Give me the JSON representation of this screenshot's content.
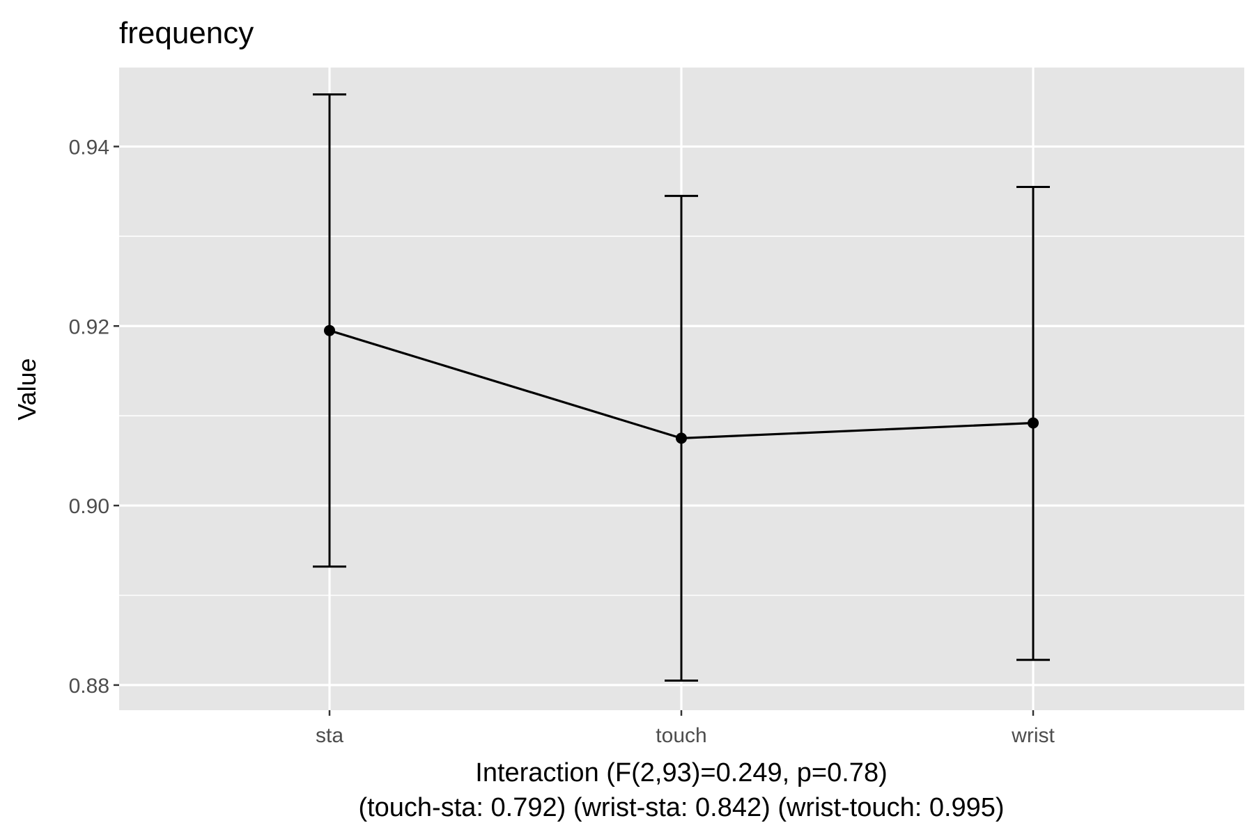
{
  "chart_data": {
    "type": "line",
    "title": "frequency",
    "xlabel_lines": [
      "Interaction (F(2,93)=0.249, p=0.78)",
      "(touch-sta: 0.792) (wrist-sta: 0.842) (wrist-touch: 0.995)"
    ],
    "ylabel": "Value",
    "categories": [
      "sta",
      "touch",
      "wrist"
    ],
    "series": [
      {
        "values": [
          0.9195,
          0.9075,
          0.9092
        ],
        "error_lower": [
          0.8932,
          0.8805,
          0.8828
        ],
        "error_upper": [
          0.9458,
          0.9345,
          0.9355
        ]
      }
    ],
    "yticks": [
      0.88,
      0.9,
      0.92,
      0.94
    ],
    "ytick_labels": [
      "0.88",
      "0.90",
      "0.92",
      "0.94"
    ],
    "ylim": [
      0.8772,
      0.9488
    ],
    "grid": true,
    "colors": {
      "panel_background": "#E5E5E5",
      "grid_line": "#FFFFFF",
      "series_line": "#000000",
      "axis_text": "#4D4D4D",
      "title_text": "#000000"
    }
  }
}
